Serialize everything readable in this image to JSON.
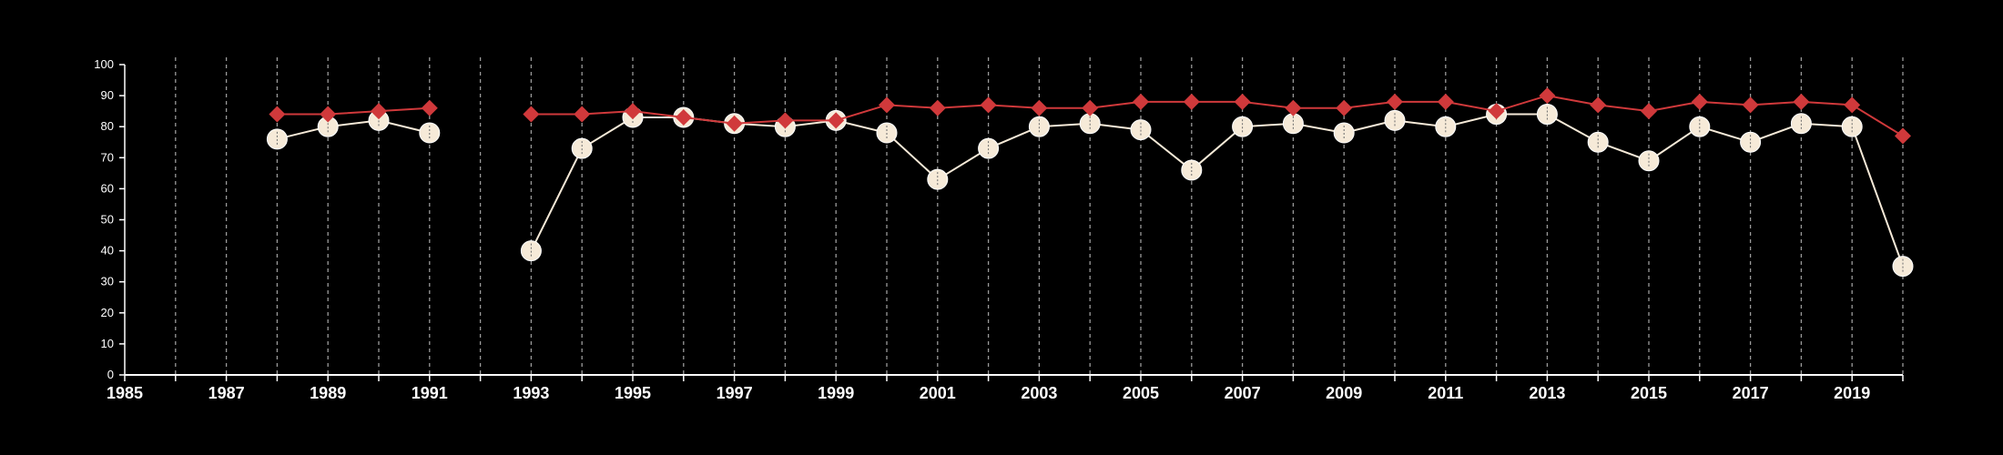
{
  "chart_data": {
    "type": "line",
    "title": "",
    "xlabel": "",
    "ylabel": "",
    "xlim": [
      1985,
      2020
    ],
    "ylim": [
      0,
      100
    ],
    "yticks": [
      0,
      10,
      20,
      30,
      40,
      50,
      60,
      70,
      80,
      90,
      100
    ],
    "xticks": [
      1985,
      1987,
      1989,
      1991,
      1993,
      1995,
      1997,
      1999,
      2001,
      2003,
      2005,
      2007,
      2009,
      2011,
      2013,
      2015,
      2017,
      2019
    ],
    "grid": "vertical dashed lines at each year",
    "legend": "none",
    "colors": {
      "background": "#000000",
      "red_series": "#d0393b",
      "light_series": "#f6ead8",
      "axis": "#ffffff",
      "grid": "#9a9a9a"
    },
    "series": [
      {
        "marker": "diamond",
        "color": "#d0393b",
        "points": [
          {
            "x": 1988,
            "y": 84
          },
          {
            "x": 1989,
            "y": 84
          },
          {
            "x": 1990,
            "y": 85
          },
          {
            "x": 1991,
            "y": 86
          },
          {
            "x": 1993,
            "y": 84
          },
          {
            "x": 1994,
            "y": 84
          },
          {
            "x": 1995,
            "y": 85
          },
          {
            "x": 1996,
            "y": 83
          },
          {
            "x": 1997,
            "y": 81
          },
          {
            "x": 1998,
            "y": 82
          },
          {
            "x": 1999,
            "y": 82
          },
          {
            "x": 2000,
            "y": 87
          },
          {
            "x": 2001,
            "y": 86
          },
          {
            "x": 2002,
            "y": 87
          },
          {
            "x": 2003,
            "y": 86
          },
          {
            "x": 2004,
            "y": 86
          },
          {
            "x": 2005,
            "y": 88
          },
          {
            "x": 2006,
            "y": 88
          },
          {
            "x": 2007,
            "y": 88
          },
          {
            "x": 2008,
            "y": 86
          },
          {
            "x": 2009,
            "y": 86
          },
          {
            "x": 2010,
            "y": 88
          },
          {
            "x": 2011,
            "y": 88
          },
          {
            "x": 2012,
            "y": 85
          },
          {
            "x": 2013,
            "y": 90
          },
          {
            "x": 2014,
            "y": 87
          },
          {
            "x": 2015,
            "y": 85
          },
          {
            "x": 2016,
            "y": 88
          },
          {
            "x": 2017,
            "y": 87
          },
          {
            "x": 2018,
            "y": 88
          },
          {
            "x": 2019,
            "y": 87
          },
          {
            "x": 2020,
            "y": 77
          }
        ]
      },
      {
        "marker": "circle",
        "color": "#f6ead8",
        "points": [
          {
            "x": 1988,
            "y": 76
          },
          {
            "x": 1989,
            "y": 80
          },
          {
            "x": 1990,
            "y": 82
          },
          {
            "x": 1991,
            "y": 78
          },
          {
            "x": 1993,
            "y": 40
          },
          {
            "x": 1994,
            "y": 73
          },
          {
            "x": 1995,
            "y": 83
          },
          {
            "x": 1996,
            "y": 83
          },
          {
            "x": 1997,
            "y": 81
          },
          {
            "x": 1998,
            "y": 80
          },
          {
            "x": 1999,
            "y": 82
          },
          {
            "x": 2000,
            "y": 78
          },
          {
            "x": 2001,
            "y": 63
          },
          {
            "x": 2002,
            "y": 73
          },
          {
            "x": 2003,
            "y": 80
          },
          {
            "x": 2004,
            "y": 81
          },
          {
            "x": 2005,
            "y": 79
          },
          {
            "x": 2006,
            "y": 66
          },
          {
            "x": 2007,
            "y": 80
          },
          {
            "x": 2008,
            "y": 81
          },
          {
            "x": 2009,
            "y": 78
          },
          {
            "x": 2010,
            "y": 82
          },
          {
            "x": 2011,
            "y": 80
          },
          {
            "x": 2012,
            "y": 84
          },
          {
            "x": 2013,
            "y": 84
          },
          {
            "x": 2014,
            "y": 75
          },
          {
            "x": 2015,
            "y": 69
          },
          {
            "x": 2016,
            "y": 80
          },
          {
            "x": 2017,
            "y": 75
          },
          {
            "x": 2018,
            "y": 81
          },
          {
            "x": 2019,
            "y": 80
          },
          {
            "x": 2020,
            "y": 35
          }
        ]
      }
    ]
  }
}
